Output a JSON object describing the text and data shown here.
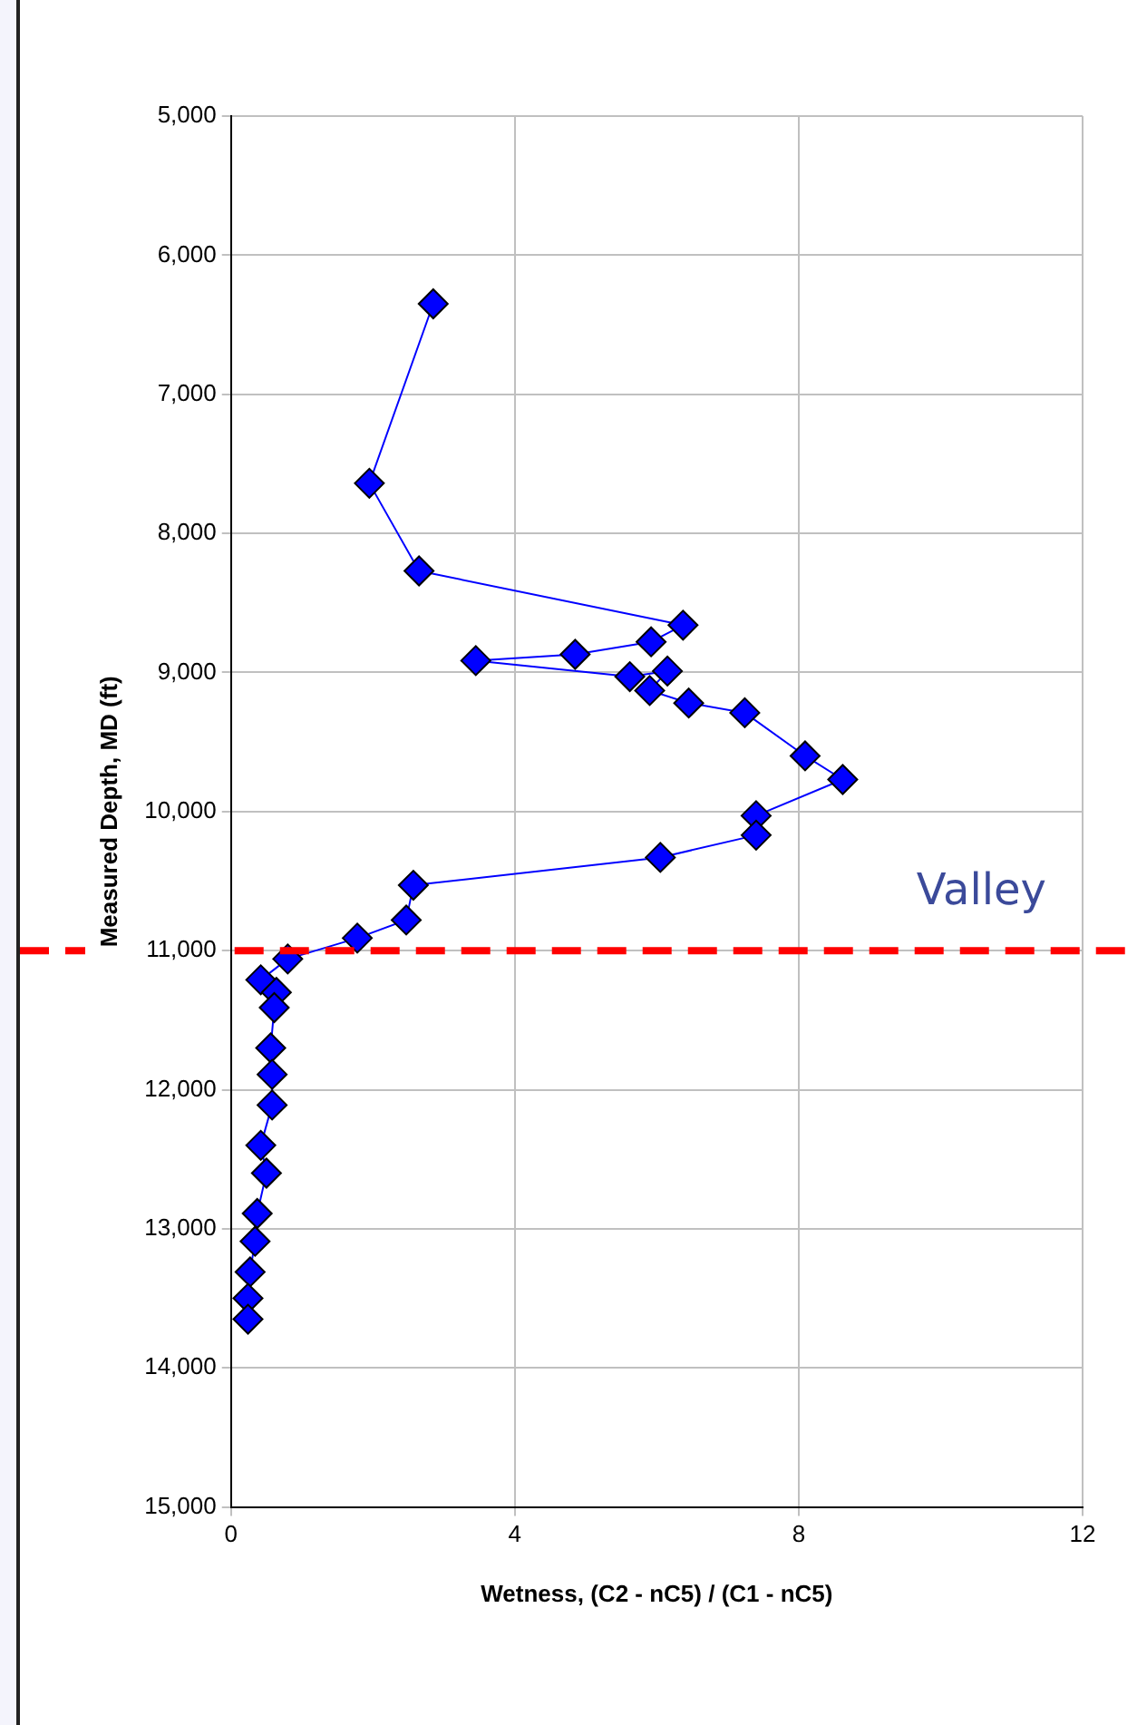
{
  "chart_data": {
    "type": "line",
    "xlabel": "Wetness, (C2 - nC5) / (C1 - nC5)",
    "ylabel": "Measured Depth, MD (ft)",
    "x": [
      2.85,
      1.95,
      2.65,
      6.37,
      5.92,
      4.85,
      3.45,
      5.62,
      6.15,
      5.9,
      6.45,
      7.24,
      8.09,
      8.62,
      7.4,
      7.4,
      6.05,
      2.57,
      2.47,
      1.78,
      0.8,
      0.42,
      0.64,
      0.61,
      0.56,
      0.58,
      0.58,
      0.42,
      0.5,
      0.37,
      0.34,
      0.27,
      0.24,
      0.24
    ],
    "series": [
      {
        "color": "#0000ff",
        "values": [
          6350,
          7640,
          8270,
          8660,
          8780,
          8870,
          8915,
          9030,
          8990,
          9130,
          9220,
          9290,
          9600,
          9770,
          10030,
          10170,
          10330,
          10530,
          10780,
          10910,
          11060,
          11210,
          11300,
          11410,
          11700,
          11890,
          12110,
          12400,
          12600,
          12890,
          13090,
          13310,
          13500,
          13650
        ]
      }
    ],
    "xlim": [
      0,
      12
    ],
    "xticks": [
      0,
      4,
      8,
      12
    ],
    "ylim": [
      15000,
      5000
    ],
    "yticks": [
      {
        "value": 5000,
        "label": "5,000"
      },
      {
        "value": 6000,
        "label": "6,000"
      },
      {
        "value": 7000,
        "label": "7,000"
      },
      {
        "value": 8000,
        "label": "8,000"
      },
      {
        "value": 9000,
        "label": "9,000"
      },
      {
        "value": 10000,
        "label": "10,000"
      },
      {
        "value": 11000,
        "label": "11,000"
      },
      {
        "value": 12000,
        "label": "12,000"
      },
      {
        "value": 13000,
        "label": "13,000"
      },
      {
        "value": 14000,
        "label": "14,000"
      },
      {
        "value": 15000,
        "label": "15,000"
      }
    ],
    "grid": true,
    "legend": false,
    "marker": "diamond",
    "line_style": "solid",
    "ref_lines": [
      {
        "axis": "y",
        "value": 11000,
        "label": "Valley",
        "color": "#ff0000",
        "line_style": "dashed"
      }
    ]
  }
}
